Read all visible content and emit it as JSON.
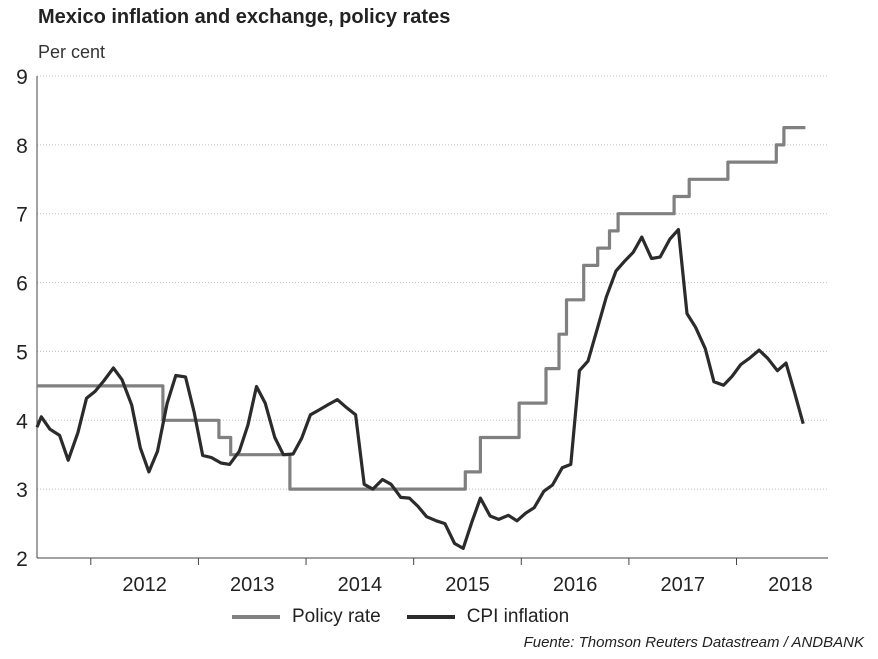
{
  "title": "Mexico inflation and exchange, policy rates",
  "subtitle": "Per cent",
  "source": "Fuente: Thomson Reuters Datastream / ANDBANK",
  "colors": {
    "policy_rate": "#808080",
    "cpi_inflation": "#2b2b2b",
    "grid": "#bdbdbd"
  },
  "chart_data": {
    "type": "line",
    "title": "Mexico inflation and exchange, policy rates",
    "ylabel": "Per cent",
    "xlabel": "",
    "ylim": [
      2,
      9
    ],
    "xlim": [
      2011.5,
      2018.85
    ],
    "yticks": [
      2,
      3,
      4,
      5,
      6,
      7,
      8,
      9
    ],
    "xticks": [
      "2012",
      "2013",
      "2014",
      "2015",
      "2016",
      "2017",
      "2018"
    ],
    "grid": "horizontal dotted",
    "legend": "bottom",
    "series": [
      {
        "name": "Policy rate",
        "step": true,
        "points": [
          [
            2011.5,
            4.5
          ],
          [
            2012.67,
            4.5
          ],
          [
            2012.67,
            4.0
          ],
          [
            2013.19,
            4.0
          ],
          [
            2013.19,
            3.75
          ],
          [
            2013.3,
            3.75
          ],
          [
            2013.3,
            3.5
          ],
          [
            2013.85,
            3.5
          ],
          [
            2013.85,
            3.0
          ],
          [
            2015.48,
            3.0
          ],
          [
            2015.48,
            3.25
          ],
          [
            2015.62,
            3.25
          ],
          [
            2015.62,
            3.75
          ],
          [
            2015.98,
            3.75
          ],
          [
            2015.98,
            4.25
          ],
          [
            2016.23,
            4.25
          ],
          [
            2016.23,
            4.75
          ],
          [
            2016.35,
            4.75
          ],
          [
            2016.35,
            5.25
          ],
          [
            2016.42,
            5.25
          ],
          [
            2016.42,
            5.75
          ],
          [
            2016.58,
            5.75
          ],
          [
            2016.58,
            6.25
          ],
          [
            2016.71,
            6.25
          ],
          [
            2016.71,
            6.5
          ],
          [
            2016.82,
            6.5
          ],
          [
            2016.82,
            6.75
          ],
          [
            2016.9,
            6.75
          ],
          [
            2016.9,
            7.0
          ],
          [
            2017.42,
            7.0
          ],
          [
            2017.42,
            7.25
          ],
          [
            2017.56,
            7.25
          ],
          [
            2017.56,
            7.5
          ],
          [
            2017.92,
            7.5
          ],
          [
            2017.92,
            7.75
          ],
          [
            2018.37,
            7.75
          ],
          [
            2018.37,
            8.0
          ],
          [
            2018.44,
            8.0
          ],
          [
            2018.44,
            8.25
          ],
          [
            2018.64,
            8.25
          ]
        ]
      },
      {
        "name": "CPI inflation",
        "step": false,
        "points": [
          [
            2011.5,
            3.9
          ],
          [
            2011.54,
            4.05
          ],
          [
            2011.62,
            3.87
          ],
          [
            2011.71,
            3.78
          ],
          [
            2011.79,
            3.42
          ],
          [
            2011.88,
            3.82
          ],
          [
            2011.96,
            4.32
          ],
          [
            2012.04,
            4.42
          ],
          [
            2012.12,
            4.57
          ],
          [
            2012.21,
            4.76
          ],
          [
            2012.29,
            4.59
          ],
          [
            2012.38,
            4.22
          ],
          [
            2012.46,
            3.6
          ],
          [
            2012.54,
            3.25
          ],
          [
            2012.62,
            3.55
          ],
          [
            2012.71,
            4.25
          ],
          [
            2012.79,
            4.65
          ],
          [
            2012.88,
            4.63
          ],
          [
            2012.96,
            4.12
          ],
          [
            2013.04,
            3.49
          ],
          [
            2013.12,
            3.46
          ],
          [
            2013.21,
            3.38
          ],
          [
            2013.29,
            3.36
          ],
          [
            2013.38,
            3.55
          ],
          [
            2013.46,
            3.93
          ],
          [
            2013.54,
            4.49
          ],
          [
            2013.62,
            4.25
          ],
          [
            2013.71,
            3.75
          ],
          [
            2013.79,
            3.5
          ],
          [
            2013.88,
            3.51
          ],
          [
            2013.96,
            3.74
          ],
          [
            2014.04,
            4.08
          ],
          [
            2014.12,
            4.15
          ],
          [
            2014.21,
            4.23
          ],
          [
            2014.29,
            4.3
          ],
          [
            2014.38,
            4.18
          ],
          [
            2014.46,
            4.08
          ],
          [
            2014.54,
            3.07
          ],
          [
            2014.62,
            3.0
          ],
          [
            2014.71,
            3.14
          ],
          [
            2014.79,
            3.07
          ],
          [
            2014.88,
            2.88
          ],
          [
            2014.96,
            2.87
          ],
          [
            2015.04,
            2.75
          ],
          [
            2015.12,
            2.6
          ],
          [
            2015.21,
            2.54
          ],
          [
            2015.29,
            2.5
          ],
          [
            2015.38,
            2.21
          ],
          [
            2015.46,
            2.14
          ],
          [
            2015.54,
            2.52
          ],
          [
            2015.62,
            2.87
          ],
          [
            2015.71,
            2.61
          ],
          [
            2015.79,
            2.56
          ],
          [
            2015.88,
            2.62
          ],
          [
            2015.96,
            2.54
          ],
          [
            2016.04,
            2.65
          ],
          [
            2016.12,
            2.73
          ],
          [
            2016.21,
            2.97
          ],
          [
            2016.29,
            3.06
          ],
          [
            2016.38,
            3.31
          ],
          [
            2016.46,
            3.36
          ],
          [
            2016.54,
            4.72
          ],
          [
            2016.62,
            4.86
          ],
          [
            2016.71,
            5.35
          ],
          [
            2016.79,
            5.79
          ],
          [
            2016.88,
            6.17
          ],
          [
            2016.96,
            6.31
          ],
          [
            2017.04,
            6.44
          ],
          [
            2017.12,
            6.66
          ],
          [
            2017.21,
            6.35
          ],
          [
            2017.29,
            6.37
          ],
          [
            2017.38,
            6.63
          ],
          [
            2017.46,
            6.77
          ],
          [
            2017.54,
            5.55
          ],
          [
            2017.62,
            5.35
          ],
          [
            2017.71,
            5.04
          ],
          [
            2017.79,
            4.56
          ],
          [
            2017.88,
            4.51
          ],
          [
            2017.96,
            4.64
          ],
          [
            2018.04,
            4.81
          ],
          [
            2018.12,
            4.9
          ],
          [
            2018.21,
            5.02
          ],
          [
            2018.29,
            4.9
          ],
          [
            2018.38,
            4.72
          ],
          [
            2018.46,
            4.83
          ],
          [
            2018.54,
            4.4
          ],
          [
            2018.62,
            3.95
          ]
        ]
      }
    ]
  }
}
